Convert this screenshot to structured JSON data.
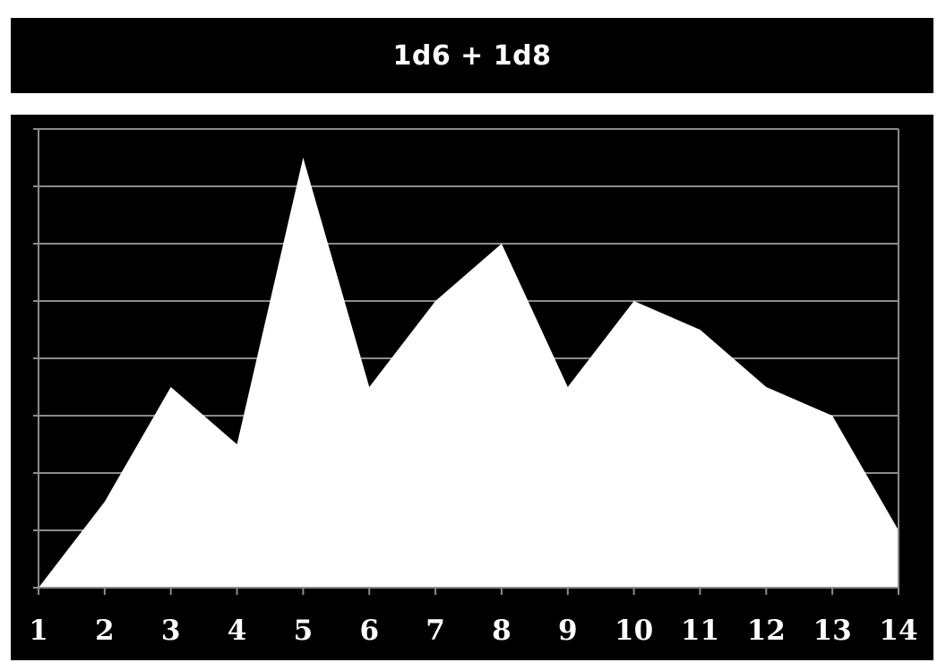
{
  "header": {
    "title": "1d6 + 1d8"
  },
  "colors": {
    "background": "#000000",
    "area_fill": "#ffffff",
    "gridline": "#8c8c8c",
    "text": "#ffffff"
  },
  "chart_data": {
    "type": "area",
    "title": "1d6 + 1d8",
    "xlabel": "",
    "ylabel": "",
    "x": [
      1,
      2,
      3,
      4,
      5,
      6,
      7,
      8,
      9,
      10,
      11,
      12,
      13,
      14
    ],
    "values": [
      0,
      1.5,
      3.5,
      2.5,
      7.5,
      3.5,
      5,
      6,
      3.5,
      5,
      4.5,
      3.5,
      3,
      1
    ],
    "xlim": [
      1,
      14
    ],
    "ylim": [
      0,
      8
    ],
    "y_tick_labels_shown": false,
    "grid": true
  }
}
